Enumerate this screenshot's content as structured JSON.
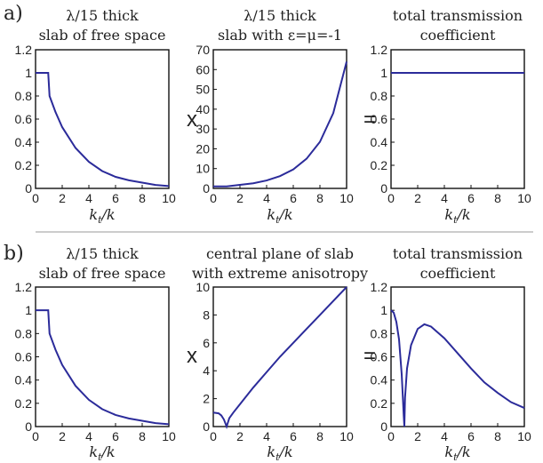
{
  "rows": [
    {
      "label": "a)",
      "operators": [
        "x",
        "="
      ],
      "xlabel_main": "k",
      "xlabel_sub": "t",
      "xlabel_suffix": "/k",
      "panels": [
        {
          "title_lines": [
            "λ/15 thick",
            "slab of free space"
          ],
          "xticks": [
            "0",
            "2",
            "4",
            "6",
            "8",
            "10"
          ],
          "yticks": [
            "0",
            "0.2",
            "0.4",
            "0.6",
            "0.8",
            "1",
            "1.2"
          ]
        },
        {
          "title_lines": [
            "λ/15 thick",
            "slab with ε=μ=-1"
          ],
          "xticks": [
            "0",
            "2",
            "4",
            "6",
            "8",
            "10"
          ],
          "yticks": [
            "0",
            "10",
            "20",
            "30",
            "40",
            "50",
            "60",
            "70"
          ]
        },
        {
          "title_lines": [
            "total transmission",
            "coefficient"
          ],
          "xticks": [
            "0",
            "2",
            "4",
            "6",
            "8",
            "10"
          ],
          "yticks": [
            "0",
            "0.2",
            "0.4",
            "0.6",
            "0.8",
            "1",
            "1.2"
          ]
        }
      ]
    },
    {
      "label": "b)",
      "operators": [
        "x",
        "="
      ],
      "xlabel_main": "k",
      "xlabel_sub": "t",
      "xlabel_suffix": "/k",
      "panels": [
        {
          "title_lines": [
            "λ/15 thick",
            "slab of free space"
          ],
          "xticks": [
            "0",
            "2",
            "4",
            "6",
            "8",
            "10"
          ],
          "yticks": [
            "0",
            "0.2",
            "0.4",
            "0.6",
            "0.8",
            "1",
            "1.2"
          ]
        },
        {
          "title_lines": [
            "central plane of slab",
            "with extreme anisotropy"
          ],
          "xticks": [
            "0",
            "2",
            "4",
            "6",
            "8",
            "10"
          ],
          "yticks": [
            "0",
            "2",
            "4",
            "6",
            "8",
            "10"
          ]
        },
        {
          "title_lines": [
            "total transmission",
            "coefficient"
          ],
          "xticks": [
            "0",
            "2",
            "4",
            "6",
            "8",
            "10"
          ],
          "yticks": [
            "0",
            "0.2",
            "0.4",
            "0.6",
            "0.8",
            "1",
            "1.2"
          ]
        }
      ]
    }
  ],
  "chart_data": [
    {
      "type": "line",
      "title": "λ/15 thick slab of free space",
      "xlabel": "kt/k",
      "ylabel": "",
      "xlim": [
        0,
        10
      ],
      "ylim": [
        0,
        1.2
      ],
      "line_color": "#2b2b9a",
      "series": [
        {
          "x": [
            0,
            0.5,
            0.95,
            1.05,
            1.5,
            2,
            3,
            4,
            5,
            6,
            7,
            8,
            9,
            10
          ],
          "y": [
            1,
            1,
            1,
            0.8,
            0.66,
            0.53,
            0.35,
            0.23,
            0.15,
            0.1,
            0.07,
            0.05,
            0.03,
            0.02
          ]
        }
      ]
    },
    {
      "type": "line",
      "title": "λ/15 thick slab with ε=μ=-1",
      "xlabel": "kt/k",
      "ylabel": "",
      "xlim": [
        0,
        10
      ],
      "ylim": [
        0,
        70
      ],
      "line_color": "#2b2b9a",
      "series": [
        {
          "x": [
            0,
            1,
            2,
            3,
            4,
            5,
            6,
            7,
            8,
            9,
            10
          ],
          "y": [
            1,
            1,
            1.8,
            2.6,
            4,
            6.2,
            9.6,
            15,
            23.5,
            38,
            64
          ]
        }
      ]
    },
    {
      "type": "line",
      "title": "total transmission coefficient",
      "xlabel": "kt/k",
      "ylabel": "",
      "xlim": [
        0,
        10
      ],
      "ylim": [
        0,
        1.2
      ],
      "line_color": "#2b2b9a",
      "series": [
        {
          "x": [
            0,
            10
          ],
          "y": [
            1,
            1
          ]
        }
      ]
    },
    {
      "type": "line",
      "title": "λ/15 thick slab of free space",
      "xlabel": "kt/k",
      "ylabel": "",
      "xlim": [
        0,
        10
      ],
      "ylim": [
        0,
        1.2
      ],
      "line_color": "#2b2b9a",
      "series": [
        {
          "x": [
            0,
            0.5,
            0.95,
            1.05,
            1.5,
            2,
            3,
            4,
            5,
            6,
            7,
            8,
            9,
            10
          ],
          "y": [
            1,
            1,
            1,
            0.8,
            0.66,
            0.53,
            0.35,
            0.23,
            0.15,
            0.1,
            0.07,
            0.05,
            0.03,
            0.02
          ]
        }
      ]
    },
    {
      "type": "line",
      "title": "central plane of slab with extreme anisotropy",
      "xlabel": "kt/k",
      "ylabel": "",
      "xlim": [
        0,
        10
      ],
      "ylim": [
        0,
        10
      ],
      "line_color": "#2b2b9a",
      "series": [
        {
          "x": [
            0,
            0.4,
            0.6,
            0.8,
            0.9,
            1,
            1.2,
            1.5,
            2,
            3,
            4,
            5,
            6,
            7,
            8,
            9,
            10
          ],
          "y": [
            1,
            0.95,
            0.8,
            0.5,
            0.25,
            0,
            0.6,
            1,
            1.6,
            2.8,
            3.9,
            5,
            6,
            7,
            8,
            9,
            10
          ]
        }
      ]
    },
    {
      "type": "line",
      "title": "total transmission coefficient",
      "xlabel": "kt/k",
      "ylabel": "",
      "xlim": [
        0,
        10
      ],
      "ylim": [
        0,
        1.2
      ],
      "line_color": "#2b2b9a",
      "series": [
        {
          "x": [
            0,
            0.2,
            0.4,
            0.6,
            0.8,
            0.9,
            0.95,
            1,
            1.05,
            1.2,
            1.5,
            2,
            2.5,
            3,
            4,
            5,
            6,
            7,
            8,
            9,
            10
          ],
          "y": [
            1,
            0.98,
            0.9,
            0.75,
            0.45,
            0.22,
            0.1,
            0,
            0.25,
            0.5,
            0.7,
            0.84,
            0.88,
            0.86,
            0.76,
            0.63,
            0.5,
            0.38,
            0.29,
            0.21,
            0.16
          ]
        }
      ]
    }
  ]
}
